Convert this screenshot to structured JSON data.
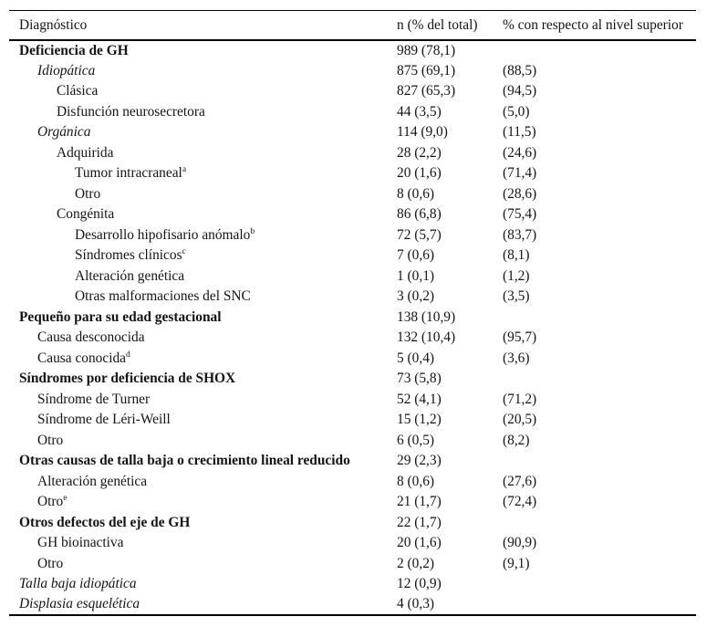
{
  "colors": {
    "text": "#141414",
    "border": "#000000",
    "background": "#ffffff"
  },
  "table": {
    "columns": [
      {
        "label": "Diagnóstico"
      },
      {
        "label": "n (% del total)"
      },
      {
        "label": "% con respecto al nivel superior"
      }
    ],
    "rows": [
      {
        "label": "Deficiencia de GH",
        "sup": "",
        "indent": 0,
        "style": "bold",
        "n": "989 (78,1)",
        "pct": ""
      },
      {
        "label": "Idiopática",
        "sup": "",
        "indent": 1,
        "style": "italic",
        "n": "875 (69,1)",
        "pct": "(88,5)"
      },
      {
        "label": "Clásica",
        "sup": "",
        "indent": 2,
        "style": "regular",
        "n": "827 (65,3)",
        "pct": "(94,5)"
      },
      {
        "label": "Disfunción neurosecretora",
        "sup": "",
        "indent": 2,
        "style": "regular",
        "n": "44 (3,5)",
        "pct": "(5,0)"
      },
      {
        "label": "Orgánica",
        "sup": "",
        "indent": 1,
        "style": "italic",
        "n": "114 (9,0)",
        "pct": "(11,5)"
      },
      {
        "label": "Adquirida",
        "sup": "",
        "indent": 2,
        "style": "regular",
        "n": "28 (2,2)",
        "pct": "(24,6)"
      },
      {
        "label": "Tumor intracraneal",
        "sup": "a",
        "indent": 3,
        "style": "regular",
        "n": "20 (1,6)",
        "pct": "(71,4)"
      },
      {
        "label": "Otro",
        "sup": "",
        "indent": 3,
        "style": "regular",
        "n": "8 (0,6)",
        "pct": "(28,6)"
      },
      {
        "label": "Congénita",
        "sup": "",
        "indent": 2,
        "style": "regular",
        "n": "86 (6,8)",
        "pct": "(75,4)"
      },
      {
        "label": "Desarrollo hipofisario anómalo",
        "sup": "b",
        "indent": 3,
        "style": "regular",
        "n": "72 (5,7)",
        "pct": "(83,7)"
      },
      {
        "label": "Síndromes clínicos",
        "sup": "c",
        "indent": 3,
        "style": "regular",
        "n": "7 (0,6)",
        "pct": "(8,1)"
      },
      {
        "label": "Alteración genética",
        "sup": "",
        "indent": 3,
        "style": "regular",
        "n": "1 (0,1)",
        "pct": "(1,2)"
      },
      {
        "label": "Otras malformaciones del SNC",
        "sup": "",
        "indent": 3,
        "style": "regular",
        "n": "3 (0,2)",
        "pct": "(3,5)"
      },
      {
        "label": "Pequeño para su edad gestacional",
        "sup": "",
        "indent": 0,
        "style": "bold",
        "n": "138 (10,9)",
        "pct": ""
      },
      {
        "label": "Causa desconocida",
        "sup": "",
        "indent": 1,
        "style": "regular",
        "n": "132 (10,4)",
        "pct": "(95,7)"
      },
      {
        "label": "Causa conocida",
        "sup": "d",
        "indent": 1,
        "style": "regular",
        "n": "5 (0,4)",
        "pct": "(3,6)"
      },
      {
        "label": "Síndromes por deficiencia de SHOX",
        "sup": "",
        "indent": 0,
        "style": "bold",
        "n": "73 (5,8)",
        "pct": ""
      },
      {
        "label": "Síndrome de Turner",
        "sup": "",
        "indent": 1,
        "style": "regular",
        "n": "52 (4,1)",
        "pct": "(71,2)"
      },
      {
        "label": "Síndrome de Léri-Weill",
        "sup": "",
        "indent": 1,
        "style": "regular",
        "n": "15 (1,2)",
        "pct": "(20,5)"
      },
      {
        "label": "Otro",
        "sup": "",
        "indent": 1,
        "style": "regular",
        "n": "6 (0,5)",
        "pct": "(8,2)"
      },
      {
        "label": "Otras causas de talla baja o crecimiento lineal reducido",
        "sup": "",
        "indent": 0,
        "style": "bold",
        "n": "29 (2,3)",
        "pct": ""
      },
      {
        "label": "Alteración genética",
        "sup": "",
        "indent": 1,
        "style": "regular",
        "n": "8 (0,6)",
        "pct": "(27,6)"
      },
      {
        "label": "Otro",
        "sup": "e",
        "indent": 1,
        "style": "regular",
        "n": "21 (1,7)",
        "pct": "(72,4)"
      },
      {
        "label": "Otros defectos del eje de GH",
        "sup": "",
        "indent": 0,
        "style": "bold",
        "n": "22 (1,7)",
        "pct": ""
      },
      {
        "label": "GH bioinactiva",
        "sup": "",
        "indent": 1,
        "style": "regular",
        "n": "20 (1,6)",
        "pct": "(90,9)"
      },
      {
        "label": "Otro",
        "sup": "",
        "indent": 1,
        "style": "regular",
        "n": "2 (0,2)",
        "pct": "(9,1)"
      },
      {
        "label": "Talla baja idiopática",
        "sup": "",
        "indent": 0,
        "style": "italic",
        "n": "12 (0,9)",
        "pct": ""
      },
      {
        "label": "Displasia esquelética",
        "sup": "",
        "indent": 0,
        "style": "italic",
        "n": "4 (0,3)",
        "pct": ""
      }
    ]
  }
}
